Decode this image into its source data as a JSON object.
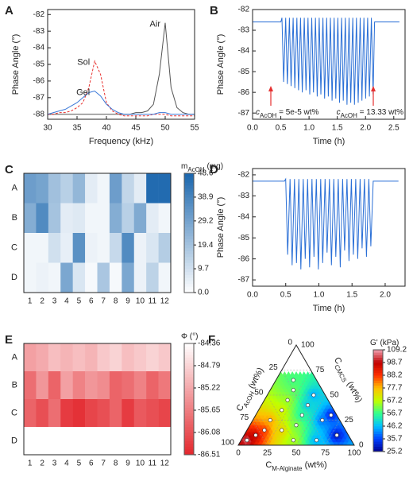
{
  "chart_data": [
    {
      "type": "line",
      "panel_label": "A",
      "y_label": "Phase Angle (°)",
      "x_label": "Frequency (kHz)",
      "xlim": [
        30,
        55
      ],
      "xticks": [
        30,
        35,
        40,
        45,
        50,
        55
      ],
      "ylim": [
        -88.3,
        -81.7
      ],
      "yticks": [
        -88,
        -87,
        -86,
        -85,
        -84,
        -83,
        -82
      ],
      "x": [
        30,
        31,
        32,
        33,
        34,
        35,
        36,
        37,
        38,
        39,
        40,
        41,
        42,
        43,
        44,
        45,
        46,
        47,
        48,
        49,
        50,
        51,
        52,
        53,
        54,
        55
      ],
      "series": [
        {
          "name": "Air",
          "color": "#555555",
          "dash": false,
          "values": [
            -88.0,
            -88.0,
            -88.0,
            -88.0,
            -88.0,
            -88.0,
            -88.0,
            -88.0,
            -88.0,
            -88.0,
            -88.0,
            -88.0,
            -88.0,
            -88.0,
            -88.0,
            -87.9,
            -87.9,
            -87.8,
            -87.4,
            -85.6,
            -82.5,
            -86.4,
            -87.6,
            -87.9,
            -88.0,
            -88.0
          ]
        },
        {
          "name": "Sol",
          "color": "#e8312f",
          "dash": true,
          "values": [
            -88.0,
            -88.0,
            -87.9,
            -87.9,
            -87.8,
            -87.6,
            -87.3,
            -86.4,
            -84.8,
            -85.6,
            -87.3,
            -87.8,
            -88.0,
            -88.1,
            -88.1,
            -88.1,
            -88.1,
            -88.1,
            -88.0,
            -88.0,
            -88.0,
            -88.1,
            -88.1,
            -88.1,
            -88.1,
            -88.1
          ]
        },
        {
          "name": "Gel",
          "color": "#3a78d8",
          "dash": false,
          "values": [
            -88.0,
            -87.9,
            -87.8,
            -87.7,
            -87.5,
            -87.3,
            -87.0,
            -86.7,
            -86.6,
            -86.9,
            -87.4,
            -87.7,
            -87.9,
            -88.0,
            -88.0,
            -88.0,
            -88.0,
            -88.0,
            -88.0,
            -87.9,
            -87.9,
            -88.0,
            -88.0,
            -88.0,
            -88.0,
            -88.0
          ]
        }
      ]
    },
    {
      "type": "line",
      "panel_label": "B",
      "y_label": "Phase Angle (°)",
      "x_label": "Time (h)",
      "xlim": [
        0,
        2.7
      ],
      "xticks": [
        {
          "value": 0,
          "label": "0.0"
        },
        0.5,
        {
          "value": 1,
          "label": "1.0"
        },
        1.5,
        {
          "value": 2,
          "label": "2.0"
        },
        2.5
      ],
      "ylim": [
        -87.3,
        -82
      ],
      "yticks": [
        -87,
        -86,
        -85,
        -84,
        -83,
        -82
      ],
      "annotations": [
        [
          {
            "text": "c",
            "italic": true
          },
          {
            "text": "AcOH",
            "sub": true
          },
          {
            "text": " = 5e-5 wt%"
          }
        ],
        [
          {
            "text": "c",
            "italic": true
          },
          {
            "text": "AcOH",
            "sub": true
          },
          {
            "text": " = 13.33 wt%"
          }
        ]
      ],
      "series": [
        {
          "color": "#2a6fd6",
          "dash": false,
          "x": [
            0,
            0.1,
            0.2,
            0.3,
            0.4,
            0.5,
            0.52,
            0.55,
            0.586,
            0.616,
            0.652,
            0.682,
            0.718,
            0.748,
            0.784,
            0.814,
            0.85,
            0.88,
            0.916,
            0.946,
            0.982,
            1.012,
            1.048,
            1.078,
            1.114,
            1.144,
            1.18,
            1.21,
            1.246,
            1.276,
            1.312,
            1.342,
            1.378,
            1.408,
            1.444,
            1.474,
            1.51,
            1.54,
            1.576,
            1.606,
            1.642,
            1.672,
            1.708,
            1.738,
            1.774,
            1.804,
            1.84,
            1.87,
            1.906,
            1.936,
            1.972,
            2.002,
            2.038,
            2.068,
            2.104,
            2.134,
            2.16,
            2.3,
            2.45,
            2.6
          ],
          "values": [
            -82.6,
            -82.6,
            -82.6,
            -82.6,
            -82.6,
            -82.6,
            -82.4,
            -85.5,
            -82.4,
            -85.6,
            -82.4,
            -85.7,
            -82.4,
            -85.8,
            -82.4,
            -85.9,
            -82.4,
            -86.0,
            -82.4,
            -85.9,
            -82.4,
            -86.1,
            -82.4,
            -86.0,
            -82.4,
            -86.2,
            -82.4,
            -86.1,
            -82.4,
            -86.3,
            -82.4,
            -86.2,
            -82.4,
            -86.4,
            -82.4,
            -86.3,
            -82.4,
            -86.5,
            -82.4,
            -86.4,
            -82.4,
            -86.6,
            -82.4,
            -86.5,
            -82.4,
            -86.6,
            -82.4,
            -86.5,
            -82.4,
            -86.4,
            -82.4,
            -86.3,
            -82.4,
            -86.2,
            -82.4,
            -86.1,
            -82.6,
            -82.6,
            -82.6,
            -82.6
          ]
        }
      ]
    },
    {
      "type": "heatmap",
      "panel_label": "C",
      "categories": [
        "1",
        "2",
        "3",
        "4",
        "5",
        "6",
        "7",
        "8",
        "9",
        "10",
        "11",
        "12"
      ],
      "rows": [
        "A",
        "B",
        "C",
        "D"
      ],
      "colorbar_title": [
        {
          "text": "m"
        },
        {
          "text": "AcOH",
          "sub": true
        },
        {
          "text": " (mg)"
        }
      ],
      "clim": [
        0,
        48.6
      ],
      "colors": [
        "#ffffff",
        "#1a66ad"
      ],
      "cticks": [
        {
          "value": 0,
          "label": "0.0"
        },
        9.7,
        19.4,
        29.2,
        38.9,
        48.6
      ],
      "values": [
        [
          31,
          29,
          20,
          15,
          23,
          6,
          3,
          31,
          13,
          6,
          47,
          47
        ],
        [
          26,
          37,
          19,
          6,
          7,
          3,
          3,
          26,
          15,
          27,
          6,
          3
        ],
        [
          3,
          3,
          10,
          5,
          35,
          4,
          3,
          12,
          37,
          4,
          8,
          16
        ],
        [
          3,
          4,
          3,
          28,
          8,
          2,
          18,
          2,
          28,
          4,
          14,
          3
        ]
      ]
    },
    {
      "type": "line",
      "panel_label": "D",
      "y_label": "Phase Angle (°)",
      "x_label": "Time (h)",
      "xlim": [
        0,
        2.3
      ],
      "xticks": [
        {
          "value": 0,
          "label": "0.0"
        },
        0.5,
        {
          "value": 1,
          "label": "1.0"
        },
        1.5,
        {
          "value": 2,
          "label": "2.0"
        }
      ],
      "ylim": [
        -87.3,
        -81.7
      ],
      "yticks": [
        -87,
        -86,
        -85,
        -84,
        -83,
        -82
      ],
      "series": [
        {
          "color": "#2a6fd6",
          "dash": false,
          "x": [
            0,
            0.1,
            0.2,
            0.3,
            0.4,
            0.48,
            0.5,
            0.53,
            0.566,
            0.596,
            0.632,
            0.662,
            0.698,
            0.728,
            0.764,
            0.794,
            0.83,
            0.86,
            0.896,
            0.926,
            0.962,
            0.992,
            1.028,
            1.058,
            1.094,
            1.124,
            1.16,
            1.19,
            1.226,
            1.256,
            1.292,
            1.322,
            1.358,
            1.388,
            1.424,
            1.454,
            1.49,
            1.52,
            1.556,
            1.586,
            1.622,
            1.652,
            1.688,
            1.718,
            1.754,
            1.784,
            1.82,
            1.95,
            2.1,
            2.2
          ],
          "values": [
            -82.3,
            -82.3,
            -82.3,
            -82.3,
            -82.3,
            -82.3,
            -82.2,
            -85.8,
            -82.2,
            -86.3,
            -82.2,
            -86.2,
            -82.2,
            -86.5,
            -82.2,
            -86.0,
            -82.2,
            -86.4,
            -82.2,
            -85.9,
            -82.2,
            -86.5,
            -82.2,
            -86.2,
            -82.2,
            -85.7,
            -82.2,
            -86.3,
            -82.2,
            -85.9,
            -82.2,
            -86.4,
            -82.2,
            -85.6,
            -82.2,
            -86.1,
            -82.2,
            -85.8,
            -82.2,
            -86.0,
            -82.2,
            -85.5,
            -82.2,
            -85.9,
            -82.2,
            -85.4,
            -82.3,
            -82.3,
            -82.3,
            -82.3
          ]
        }
      ]
    },
    {
      "type": "heatmap",
      "panel_label": "E",
      "categories": [
        "1",
        "2",
        "3",
        "4",
        "5",
        "6",
        "7",
        "8",
        "9",
        "10",
        "11",
        "12"
      ],
      "rows": [
        "A",
        "B",
        "C",
        "D"
      ],
      "colorbar_title": [
        {
          "text": "Φ (°)"
        }
      ],
      "clim": [
        -86.51,
        -84.36
      ],
      "colors": [
        "#e3262c",
        "#ffffff"
      ],
      "cticks": [
        -84.36,
        -84.79,
        -85.22,
        -85.65,
        -86.08,
        -86.51
      ],
      "values": [
        [
          -85.3,
          -85.2,
          -85.0,
          -85.1,
          -85.0,
          -85.1,
          -84.9,
          -84.8,
          -85.0,
          -84.9,
          -84.8,
          -84.9
        ],
        [
          -85.8,
          -85.4,
          -85.9,
          -85.3,
          -85.6,
          -85.4,
          -85.5,
          -85.9,
          -85.8,
          -85.6,
          -85.9,
          -85.7
        ],
        [
          -85.9,
          -86.1,
          -85.8,
          -86.3,
          -86.4,
          -86.2,
          -86.1,
          -85.9,
          -86.3,
          -86.0,
          -86.1,
          -86.2
        ],
        [
          -84.36,
          -84.36,
          -84.36,
          -84.36,
          -84.36,
          -84.36,
          -84.36,
          -84.36,
          -84.36,
          -84.36,
          -84.36,
          -84.36
        ]
      ]
    },
    {
      "type": "ternary",
      "panel_label": "F",
      "a_label": [
        {
          "text": "C"
        },
        {
          "text": "AcOH",
          "sub": true
        },
        {
          "text": " (wt%)"
        }
      ],
      "b_label": [
        {
          "text": "C"
        },
        {
          "text": "CMCS",
          "sub": true
        },
        {
          "text": " (wt%)"
        }
      ],
      "c_label": [
        {
          "text": "C"
        },
        {
          "text": "M-Alginate",
          "sub": true
        },
        {
          "text": " (wt%)"
        }
      ],
      "ticks": [
        0,
        25,
        50,
        75,
        100
      ],
      "colorbar_title": [
        {
          "text": "G' (kPa)"
        }
      ],
      "clim": [
        25.2,
        109.2
      ],
      "colormap": [
        "#00008f",
        "#0040ff",
        "#00c0ff",
        "#30ff90",
        "#c0ff00",
        "#ffc000",
        "#ff3000",
        "#c00000",
        "#f0a0b0"
      ],
      "cticks": [
        25.2,
        35.7,
        46.2,
        56.7,
        67.2,
        77.7,
        88.2,
        98.7,
        109.2
      ],
      "acoh": [
        90,
        80,
        70,
        60,
        55,
        45,
        40,
        35,
        30,
        25,
        20,
        15,
        10,
        5,
        10,
        30,
        50,
        20
      ],
      "cmcs": [
        5,
        10,
        15,
        25,
        15,
        35,
        20,
        45,
        30,
        55,
        40,
        25,
        50,
        30,
        10,
        5,
        5,
        65
      ],
      "alginate": [
        5,
        10,
        15,
        15,
        30,
        20,
        40,
        20,
        40,
        20,
        40,
        60,
        40,
        65,
        80,
        65,
        45,
        15
      ],
      "values": [
        105,
        98,
        88,
        80,
        75,
        70,
        62,
        65,
        55,
        60,
        48,
        40,
        45,
        32,
        30,
        45,
        65,
        58
      ]
    }
  ]
}
